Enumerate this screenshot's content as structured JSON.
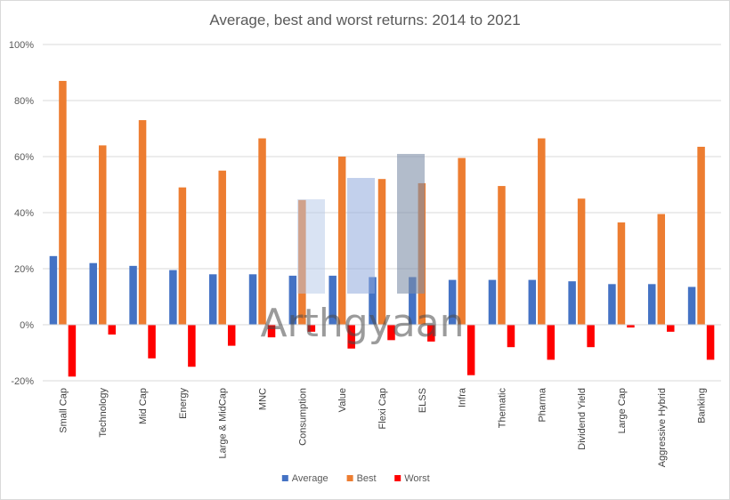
{
  "chart_data": {
    "type": "bar",
    "title": "Average, best and worst returns: 2014 to 2021",
    "xlabel": "",
    "ylabel": "",
    "ylim": [
      -20,
      100
    ],
    "yticks": [
      -20,
      0,
      20,
      40,
      60,
      80,
      100
    ],
    "ytick_suffix": "%",
    "grid": true,
    "legend": "bottom",
    "categories": [
      "Small Cap",
      "Technology",
      "Mid Cap",
      "Energy",
      "Large & MidCap",
      "MNC",
      "Consumption",
      "Value",
      "Flexi Cap",
      "ELSS",
      "Infra",
      "Thematic",
      "Pharma",
      "Dividend Yield",
      "Large Cap",
      "Aggressive Hybrid",
      "Banking"
    ],
    "series": [
      {
        "name": "Average",
        "color": "#4472C4",
        "values": [
          24.5,
          22,
          21,
          19.5,
          18,
          18,
          17.5,
          17.5,
          17,
          17,
          16,
          16,
          16,
          15.5,
          14.5,
          14.5,
          13.5
        ]
      },
      {
        "name": "Best",
        "color": "#ED7D31",
        "values": [
          87,
          64,
          73,
          49,
          55,
          66.5,
          44.5,
          60,
          52,
          50.5,
          59.5,
          49.5,
          66.5,
          45,
          36.5,
          39.5,
          63.5
        ]
      },
      {
        "name": "Worst",
        "color": "#FF0000",
        "values": [
          -18.5,
          -3.5,
          -12,
          -15,
          -7.5,
          -4.5,
          -2.5,
          -8.5,
          -5.5,
          -6,
          -18,
          -8,
          -12.5,
          -8,
          -1,
          -2.5,
          -12.5
        ]
      }
    ],
    "watermark": "Arthgyaan"
  }
}
